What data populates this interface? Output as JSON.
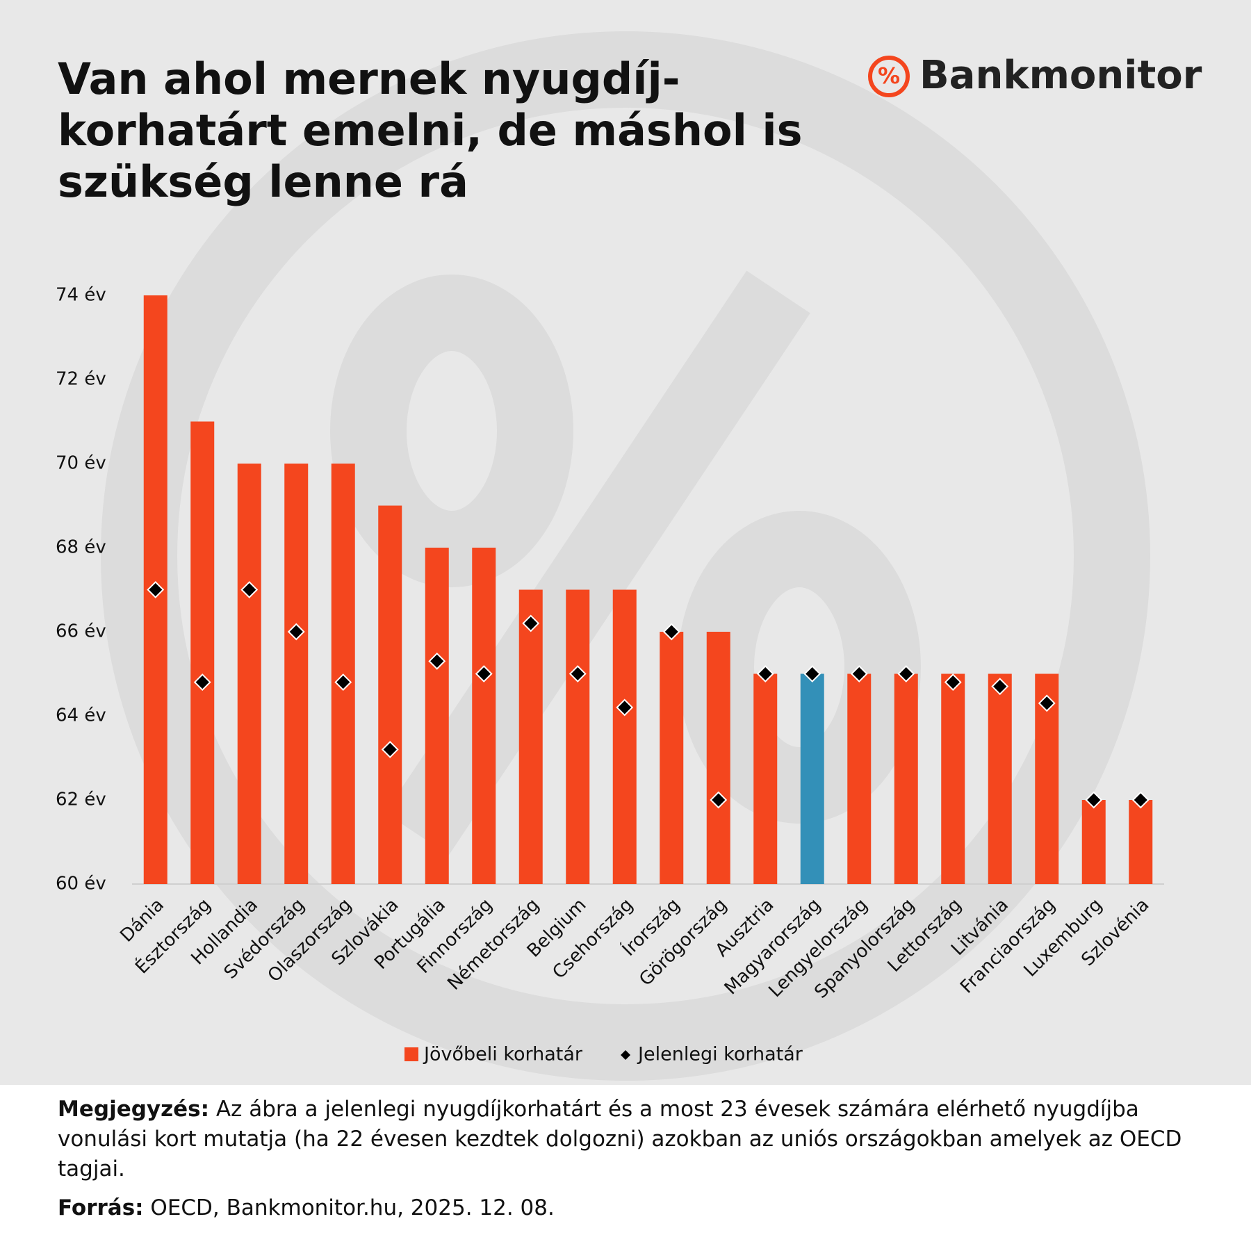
{
  "logo": "Bankmonitor",
  "note": {
    "label": "Megjegyzés:",
    "text": "Az ábra a jelenlegi nyugdíjkorhatárt és a most 23 évesek számára elérhető nyugdíjba vonulási kort mutatja (ha 22 évesen kezdtek dolgozni) azokban az uniós országokban amelyek az OECD tagjai."
  },
  "source": {
    "label": "Forrás:",
    "text": "OECD, Bankmonitor.hu, 2025. 12. 08."
  },
  "chart_data": {
    "type": "bar",
    "title": [
      "Van ahol mernek nyugdíj-",
      "korhatárt emelni, de máshol is",
      "szükség lenne rá"
    ],
    "categories": [
      "Dánia",
      "Észtország",
      "Hollandia",
      "Svédország",
      "Olaszország",
      "Szlovákia",
      "Portugália",
      "Finnország",
      "Németország",
      "Belgium",
      "Csehország",
      "Írország",
      "Görögország",
      "Ausztria",
      "Magyarország",
      "Lengyelország",
      "Spanyolország",
      "Lettország",
      "Litvánia",
      "Franciaország",
      "Luxemburg",
      "Szlovénia"
    ],
    "series": [
      {
        "name": "Jövőbeli korhatár",
        "type": "bar",
        "color": "#f4461e",
        "colors": [
          "#f4461e",
          "#f4461e",
          "#f4461e",
          "#f4461e",
          "#f4461e",
          "#f4461e",
          "#f4461e",
          "#f4461e",
          "#f4461e",
          "#f4461e",
          "#f4461e",
          "#f4461e",
          "#f4461e",
          "#f4461e",
          "#3390b8",
          "#f4461e",
          "#f4461e",
          "#f4461e",
          "#f4461e",
          "#f4461e",
          "#f4461e",
          "#f4461e"
        ],
        "values": [
          74,
          71,
          70,
          70,
          70,
          69,
          68,
          68,
          67,
          67,
          67,
          66,
          66,
          65,
          65,
          65,
          65,
          65,
          65,
          65,
          62,
          62
        ]
      },
      {
        "name": "Jelenlegi korhatár",
        "type": "marker",
        "color": "#000000",
        "values": [
          67,
          64.8,
          67,
          66,
          64.8,
          63.2,
          65.3,
          65,
          66.2,
          65,
          64.2,
          66,
          62,
          65,
          65,
          65,
          65,
          64.8,
          64.7,
          64.3,
          62,
          62
        ]
      }
    ],
    "ylim": [
      60,
      74
    ],
    "yticks": [
      {
        "value": 60,
        "label": "60 év"
      },
      {
        "value": 62,
        "label": "62 év"
      },
      {
        "value": 64,
        "label": "64 év"
      },
      {
        "value": 66,
        "label": "66 év"
      },
      {
        "value": 68,
        "label": "68 év"
      },
      {
        "value": 70,
        "label": "70 év"
      },
      {
        "value": 72,
        "label": "72 év"
      },
      {
        "value": 74,
        "label": "74 év"
      }
    ],
    "grid": false,
    "legend": "bottom"
  }
}
